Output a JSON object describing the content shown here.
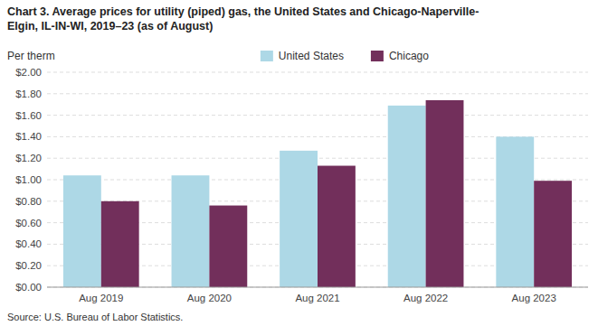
{
  "chart_data": {
    "type": "bar",
    "title": "Chart 3. Average prices for utility (piped) gas, the United States and Chicago-Naperville-\nElgin, IL-IN-WI, 2019–23 (as of August)",
    "ylabel": "Per therm",
    "source": "Source: U.S. Bureau of Labor Statistics.",
    "categories": [
      "Aug 2019",
      "Aug 2020",
      "Aug 2021",
      "Aug 2022",
      "Aug 2023"
    ],
    "series": [
      {
        "name": "United States",
        "color": "#ADD8E6",
        "values": [
          1.04,
          1.04,
          1.27,
          1.69,
          1.4
        ]
      },
      {
        "name": "Chicago",
        "color": "#722F5B",
        "values": [
          0.8,
          0.76,
          1.13,
          1.74,
          0.99
        ]
      }
    ],
    "ylim": [
      0,
      2.0
    ],
    "yticks": [
      {
        "value": 0.0,
        "label": "$0.00"
      },
      {
        "value": 0.2,
        "label": "$0.20"
      },
      {
        "value": 0.4,
        "label": "$0.40"
      },
      {
        "value": 0.6,
        "label": "$0.60"
      },
      {
        "value": 0.8,
        "label": "$0.80"
      },
      {
        "value": 1.0,
        "label": "$1.00"
      },
      {
        "value": 1.2,
        "label": "$1.20"
      },
      {
        "value": 1.4,
        "label": "$1.40"
      },
      {
        "value": 1.6,
        "label": "$1.60"
      },
      {
        "value": 1.8,
        "label": "$1.80"
      },
      {
        "value": 2.0,
        "label": "$2.00"
      }
    ],
    "grid": true,
    "legend": "top"
  }
}
